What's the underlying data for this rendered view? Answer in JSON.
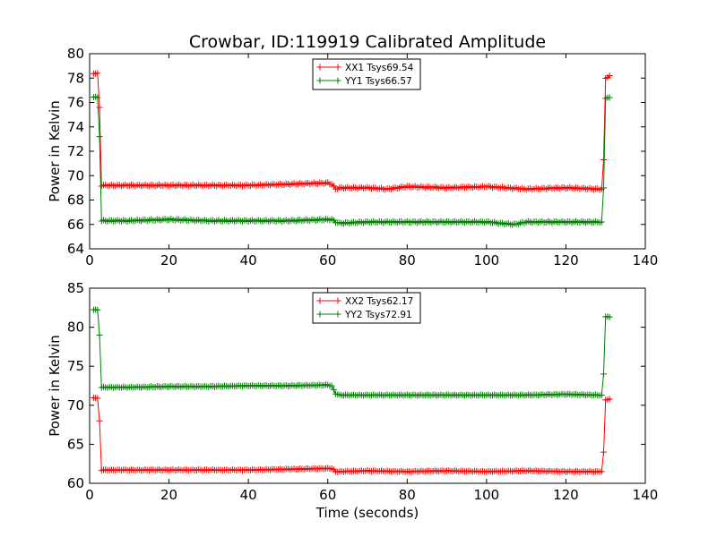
{
  "chart_data": [
    {
      "type": "line",
      "title": "Crowbar, ID:119919 Calibrated Amplitude",
      "xlabel": "",
      "ylabel": "Power in Kelvin",
      "xlim": [
        0,
        140
      ],
      "ylim": [
        64,
        80
      ],
      "xticks": [
        "0",
        "20",
        "40",
        "60",
        "80",
        "100",
        "120",
        "140"
      ],
      "yticks": [
        "64",
        "66",
        "68",
        "70",
        "72",
        "74",
        "76",
        "78",
        "80"
      ],
      "legend_position": "top-center",
      "series": [
        {
          "name": "XX1 Tsys69.54",
          "color": "#ff0000",
          "x": [
            1,
            2,
            2.5,
            3,
            10,
            20,
            30,
            40,
            50,
            60,
            61,
            62,
            63,
            70,
            75,
            80,
            90,
            100,
            110,
            120,
            128,
            129,
            129.5,
            130,
            131
          ],
          "y": [
            78.4,
            78.4,
            75.6,
            69.2,
            69.2,
            69.2,
            69.2,
            69.2,
            69.3,
            69.4,
            69.3,
            68.9,
            69.0,
            69.0,
            68.9,
            69.1,
            69.0,
            69.1,
            68.9,
            69.0,
            68.9,
            68.9,
            71.3,
            78.0,
            78.2
          ]
        },
        {
          "name": "YY1 Tsys66.57",
          "color": "#008000",
          "x": [
            1,
            2,
            2.5,
            3,
            10,
            20,
            30,
            40,
            50,
            60,
            61,
            62,
            63,
            70,
            80,
            90,
            100,
            107,
            110,
            120,
            128,
            129,
            129.5,
            130,
            131
          ],
          "y": [
            76.5,
            76.4,
            73.2,
            66.3,
            66.3,
            66.4,
            66.3,
            66.3,
            66.3,
            66.4,
            66.4,
            66.2,
            66.1,
            66.2,
            66.2,
            66.2,
            66.2,
            66.0,
            66.2,
            66.2,
            66.2,
            66.2,
            69.0,
            76.4,
            76.4
          ]
        }
      ]
    },
    {
      "type": "line",
      "title": "",
      "xlabel": "Time (seconds)",
      "ylabel": "Power in Kelvin",
      "xlim": [
        0,
        140
      ],
      "ylim": [
        60,
        85
      ],
      "xticks": [
        "0",
        "20",
        "40",
        "60",
        "80",
        "100",
        "120",
        "140"
      ],
      "yticks": [
        "60",
        "65",
        "70",
        "75",
        "80",
        "85"
      ],
      "legend_position": "top-center",
      "series": [
        {
          "name": "XX2 Tsys62.17",
          "color": "#ff0000",
          "x": [
            1,
            2,
            2.5,
            3,
            10,
            20,
            30,
            40,
            50,
            60,
            61,
            62,
            63,
            70,
            80,
            90,
            100,
            110,
            120,
            128,
            129,
            129.5,
            130,
            131
          ],
          "y": [
            71.0,
            70.9,
            68.0,
            61.7,
            61.7,
            61.7,
            61.7,
            61.7,
            61.8,
            61.9,
            61.9,
            61.5,
            61.5,
            61.6,
            61.5,
            61.6,
            61.5,
            61.6,
            61.5,
            61.5,
            61.5,
            64.0,
            70.7,
            70.8
          ]
        },
        {
          "name": "YY2 Tsys72.91",
          "color": "#008000",
          "x": [
            1,
            2,
            2.5,
            3,
            10,
            20,
            30,
            40,
            50,
            60,
            61,
            62,
            63,
            70,
            80,
            90,
            100,
            110,
            120,
            128,
            129,
            129.5,
            130,
            131
          ],
          "y": [
            82.3,
            82.2,
            79.0,
            72.3,
            72.3,
            72.4,
            72.4,
            72.5,
            72.5,
            72.6,
            72.5,
            71.5,
            71.3,
            71.3,
            71.3,
            71.3,
            71.3,
            71.3,
            71.4,
            71.3,
            71.3,
            74.0,
            81.4,
            81.3
          ]
        }
      ]
    }
  ]
}
